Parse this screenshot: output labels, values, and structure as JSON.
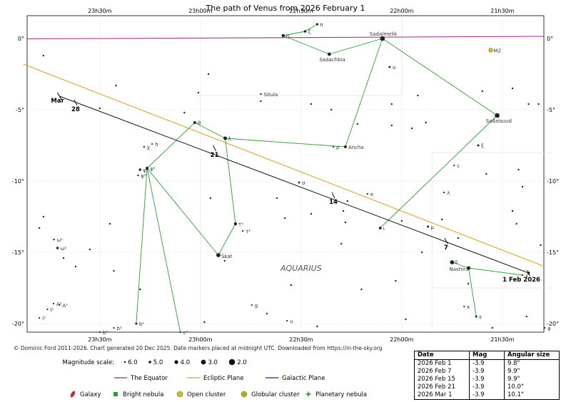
{
  "title": "The path of Venus from 2026 February 1",
  "credit": "© Dominic Ford 2011-2026. Chart generated 20 Dec 2025. Date markers placed at midnight UTC. Downloaded from https://in-the-sky.org",
  "constellation_label": "AQUARIUS",
  "chart_data": {
    "type": "scatter",
    "ra_ticks": [
      "23h30m",
      "23h00m",
      "22h30m",
      "22h00m",
      "21h30m"
    ],
    "dec_ticks": [
      "0°",
      "-5°",
      "-10°",
      "-15°",
      "-20°"
    ],
    "xlim_ra_hours": [
      23.861,
      21.294
    ],
    "ylim_dec_deg": [
      1.6,
      -20.6
    ],
    "venus_path": {
      "start": {
        "ra": 21.37,
        "dec": -16.45
      },
      "end": {
        "ra": 23.7,
        "dec": -4.05
      },
      "end_label": "Mar",
      "markers": [
        {
          "label": "1 Feb 2026",
          "ra": 21.37,
          "dec": -16.45
        },
        {
          "label": "7",
          "ra": 21.78,
          "dec": -14.2
        },
        {
          "label": "14",
          "ra": 22.34,
          "dec": -11.0
        },
        {
          "label": "21",
          "ra": 22.93,
          "dec": -7.7
        },
        {
          "label": "28",
          "ra": 23.62,
          "dec": -4.5
        }
      ]
    },
    "equator_dec": 0,
    "ecliptic": [
      {
        "ra": 23.88,
        "dec": -1.8
      },
      {
        "ra": 21.29,
        "dec": -16.0
      }
    ],
    "stars": [
      {
        "name": "Sadalmelik",
        "ra": 22.096,
        "dec": 0.0,
        "mag": 2.9
      },
      {
        "name": "Sadachbia",
        "ra": 22.36,
        "dec": -1.1,
        "mag": 3.8
      },
      {
        "name": "π",
        "ra": 22.42,
        "dec": 1.0,
        "mag": 4.6
      },
      {
        "name": "ζ",
        "ra": 22.48,
        "dec": 0.5,
        "mag": 4.4
      },
      {
        "name": "η",
        "ra": 22.589,
        "dec": 0.2,
        "mag": 4.0
      },
      {
        "name": "ο",
        "ra": 22.06,
        "dec": -2.0,
        "mag": 4.7
      },
      {
        "name": "Sadalsuud",
        "ra": 21.526,
        "dec": -5.4,
        "mag": 2.9
      },
      {
        "name": "ξ",
        "ra": 21.62,
        "dec": -7.5,
        "mag": 4.7
      },
      {
        "name": "c",
        "ra": 21.74,
        "dec": -8.9,
        "mag": 5.3
      },
      {
        "name": "λ",
        "ra": 21.79,
        "dec": -10.8,
        "mag": 5.5
      },
      {
        "name": "μ",
        "ra": 21.87,
        "dec": -13.2,
        "mag": 4.7
      },
      {
        "name": "ι",
        "ra": 22.107,
        "dec": -13.3,
        "mag": 4.3
      },
      {
        "name": "Ancha",
        "ra": 22.28,
        "dec": -7.6,
        "mag": 4.2
      },
      {
        "name": "ρ",
        "ra": 22.34,
        "dec": -7.6,
        "mag": 5.4
      },
      {
        "name": "σ",
        "ra": 22.51,
        "dec": -10.1,
        "mag": 4.8
      },
      {
        "name": "e",
        "ra": 22.17,
        "dec": -10.9,
        "mag": 5.3
      },
      {
        "name": "Situla",
        "ra": 22.7,
        "dec": -3.9,
        "mag": 5.0
      },
      {
        "name": "θ",
        "ra": 23.028,
        "dec": -5.9,
        "mag": 4.2
      },
      {
        "name": "λ",
        "ra": 22.877,
        "dec": -7.0,
        "mag": 3.7
      },
      {
        "name": "h",
        "ra": 23.24,
        "dec": -7.4,
        "mag": 5.2
      },
      {
        "name": "χ",
        "ra": 23.28,
        "dec": -7.6,
        "mag": 5.0
      },
      {
        "name": "ψ¹",
        "ra": 23.265,
        "dec": -9.1,
        "mag": 4.2
      },
      {
        "name": "ψ²",
        "ra": 23.3,
        "dec": -9.2,
        "mag": 4.4
      },
      {
        "name": "ψ³",
        "ra": 23.31,
        "dec": -9.6,
        "mag": 5.0
      },
      {
        "name": "τ²",
        "ra": 22.826,
        "dec": -13.0,
        "mag": 4.0
      },
      {
        "name": "τ¹",
        "ra": 22.79,
        "dec": -13.5,
        "mag": 5.6
      },
      {
        "name": "Skat",
        "ra": 22.911,
        "dec": -15.2,
        "mag": 3.3
      },
      {
        "name": "ω¹",
        "ra": 23.728,
        "dec": -14.1,
        "mag": 5.0
      },
      {
        "name": "ω²",
        "ra": 23.71,
        "dec": -14.7,
        "mag": 4.5
      },
      {
        "name": "A²",
        "ra": 23.73,
        "dec": -18.6,
        "mag": 5.2
      },
      {
        "name": "A¹",
        "ra": 23.7,
        "dec": -18.7,
        "mag": 5.4
      },
      {
        "name": "i¹",
        "ra": 23.76,
        "dec": -19.0,
        "mag": 5.6
      },
      {
        "name": "i³",
        "ra": 23.8,
        "dec": -19.6,
        "mag": 5.7
      },
      {
        "name": "b¹",
        "ra": 23.319,
        "dec": -20.0,
        "mag": 4.7
      },
      {
        "name": "b²",
        "ra": 23.43,
        "dec": -20.3,
        "mag": 5.2
      },
      {
        "name": "b³",
        "ra": 23.5,
        "dec": -20.6,
        "mag": 5.6
      },
      {
        "name": "c²",
        "ra": 23.1,
        "dec": -20.6,
        "mag": 5.7
      },
      {
        "name": "g",
        "ra": 22.745,
        "dec": -18.7,
        "mag": 5.3
      },
      {
        "name": "u",
        "ra": 22.57,
        "dec": -19.8,
        "mag": 5.6
      },
      {
        "name": "δ",
        "ra": 21.75,
        "dec": -15.7,
        "mag": 3.3
      },
      {
        "name": "Nashira",
        "ra": 21.668,
        "dec": -16.1,
        "mag": 3.7
      },
      {
        "name": "κ",
        "ra": 21.69,
        "dec": -18.8,
        "mag": 5.3
      },
      {
        "name": "ε",
        "ra": 21.63,
        "dec": -19.5,
        "mag": 4.7
      },
      {
        "name": "γ",
        "ra": 21.4,
        "dec": -16.6,
        "mag": 5.5
      },
      {
        "name": "φ",
        "ra": 21.29,
        "dec": -20.3,
        "mag": 5.4
      },
      {
        "name": "M2",
        "ra": 21.558,
        "dec": -0.82,
        "mag": 6.5
      }
    ],
    "constellation_lines": [
      [
        "Sadalmelik",
        "Sadachbia"
      ],
      [
        "Sadachbia",
        "η"
      ],
      [
        "η",
        "ζ"
      ],
      [
        "ζ",
        "π"
      ],
      [
        "Sadalmelik",
        "Sadalsuud"
      ],
      [
        "Sadalmelik",
        "Ancha"
      ],
      [
        "Ancha",
        "λ"
      ],
      [
        "λ",
        "θ"
      ],
      [
        "θ",
        "ψ¹"
      ],
      [
        "λ",
        "τ²"
      ],
      [
        "τ²",
        "Skat"
      ],
      [
        "Skat",
        "ψ¹"
      ],
      [
        "ψ¹",
        "b¹"
      ],
      [
        "ψ¹",
        "c²"
      ],
      [
        "Sadalsuud",
        "ι"
      ],
      [
        "δ",
        "Nashira"
      ],
      [
        "Nashira",
        "γ"
      ],
      [
        "Nashira",
        "ε"
      ]
    ],
    "magnitude_scale": [
      "6.0",
      "5.0",
      "4.0",
      "3.0",
      "2.0"
    ]
  },
  "legend": {
    "magnitude_scale_label": "Magnitude scale:",
    "lines": [
      {
        "name": "The Equator",
        "color": "#a0208a"
      },
      {
        "name": "Ecliptic Plane",
        "color": "#d8a21a"
      },
      {
        "name": "Galactic Plane",
        "color": "#1a1a9a"
      }
    ],
    "objects": [
      {
        "name": "Galaxy",
        "color": "#c0303a"
      },
      {
        "name": "Bright nebula",
        "color": "#2aa030"
      },
      {
        "name": "Open cluster",
        "color": "#c8c030"
      },
      {
        "name": "Globular cluster",
        "color": "#c8c030"
      },
      {
        "name": "Planetary nebula",
        "color": "#2aa030"
      }
    ]
  },
  "table": {
    "headers": [
      "Date",
      "Mag",
      "Angular size"
    ],
    "rows": [
      [
        "2026 Feb 1",
        "-3.9",
        "9.8\""
      ],
      [
        "2026 Feb 7",
        "-3.9",
        "9.9\""
      ],
      [
        "2026 Feb 15",
        "-3.9",
        "9.9\""
      ],
      [
        "2026 Feb 21",
        "-3.9",
        "10.0\""
      ],
      [
        "2026 Mar 1",
        "-3.9",
        "10.1\""
      ]
    ]
  }
}
